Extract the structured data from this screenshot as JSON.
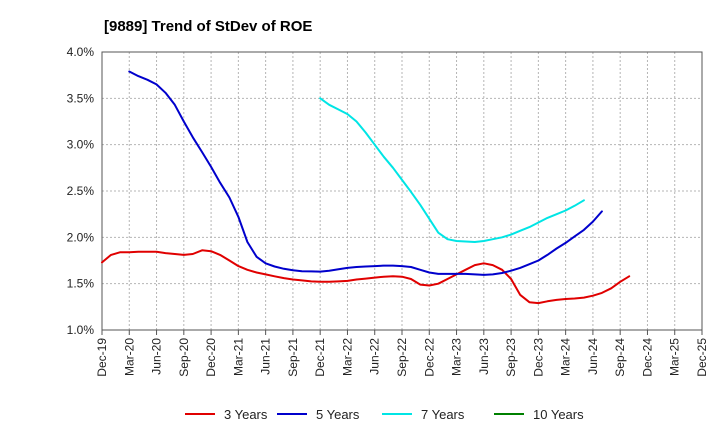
{
  "chart_data": {
    "type": "line",
    "title": "[9889]  Trend of StDev of ROE",
    "xlabel": "",
    "ylabel": "",
    "ylim": [
      1.0,
      4.0
    ],
    "y_ticks": [
      "1.0%",
      "1.5%",
      "2.0%",
      "2.5%",
      "3.0%",
      "3.5%",
      "4.0%"
    ],
    "y_tick_values": [
      1.0,
      1.5,
      2.0,
      2.5,
      3.0,
      3.5,
      4.0
    ],
    "categories": [
      "Dec-19",
      "Mar-20",
      "Jun-20",
      "Sep-20",
      "Dec-20",
      "Mar-21",
      "Jun-21",
      "Sep-21",
      "Dec-21",
      "Mar-22",
      "Jun-22",
      "Sep-22",
      "Dec-22",
      "Mar-23",
      "Jun-23",
      "Sep-23",
      "Dec-23",
      "Mar-24",
      "Jun-24",
      "Sep-24",
      "Dec-24",
      "Mar-25",
      "Dec-25"
    ],
    "grid": true,
    "legend_position": "bottom",
    "series": [
      {
        "name": "3 Years",
        "color": "#e00000",
        "points": [
          [
            0,
            1.73
          ],
          [
            0.33,
            1.81
          ],
          [
            0.67,
            1.84
          ],
          [
            1,
            1.84
          ],
          [
            1.33,
            1.845
          ],
          [
            1.67,
            1.845
          ],
          [
            2,
            1.845
          ],
          [
            2.33,
            1.83
          ],
          [
            2.67,
            1.82
          ],
          [
            3,
            1.81
          ],
          [
            3.33,
            1.82
          ],
          [
            3.67,
            1.86
          ],
          [
            4,
            1.85
          ],
          [
            4.33,
            1.81
          ],
          [
            4.67,
            1.75
          ],
          [
            5,
            1.69
          ],
          [
            5.33,
            1.65
          ],
          [
            5.67,
            1.62
          ],
          [
            6,
            1.6
          ],
          [
            6.33,
            1.58
          ],
          [
            6.67,
            1.56
          ],
          [
            7,
            1.545
          ],
          [
            7.33,
            1.535
          ],
          [
            7.67,
            1.525
          ],
          [
            8,
            1.52
          ],
          [
            8.33,
            1.52
          ],
          [
            8.67,
            1.525
          ],
          [
            9,
            1.53
          ],
          [
            9.33,
            1.545
          ],
          [
            9.67,
            1.555
          ],
          [
            10,
            1.565
          ],
          [
            10.33,
            1.575
          ],
          [
            10.67,
            1.58
          ],
          [
            11,
            1.575
          ],
          [
            11.33,
            1.55
          ],
          [
            11.67,
            1.49
          ],
          [
            12,
            1.48
          ],
          [
            12.33,
            1.5
          ],
          [
            12.67,
            1.55
          ],
          [
            13,
            1.6
          ],
          [
            13.33,
            1.65
          ],
          [
            13.67,
            1.7
          ],
          [
            14,
            1.72
          ],
          [
            14.33,
            1.7
          ],
          [
            14.67,
            1.65
          ],
          [
            15,
            1.55
          ],
          [
            15.33,
            1.38
          ],
          [
            15.67,
            1.3
          ],
          [
            16,
            1.29
          ],
          [
            16.33,
            1.31
          ],
          [
            16.67,
            1.325
          ],
          [
            17,
            1.335
          ],
          [
            17.33,
            1.34
          ],
          [
            17.67,
            1.35
          ],
          [
            18,
            1.37
          ],
          [
            18.33,
            1.4
          ],
          [
            18.67,
            1.45
          ],
          [
            19,
            1.52
          ],
          [
            19.33,
            1.58
          ]
        ]
      },
      {
        "name": "5 Years",
        "color": "#0000cc",
        "points": [
          [
            1,
            3.79
          ],
          [
            1.33,
            3.74
          ],
          [
            1.67,
            3.7
          ],
          [
            2,
            3.65
          ],
          [
            2.33,
            3.56
          ],
          [
            2.67,
            3.43
          ],
          [
            3,
            3.25
          ],
          [
            3.33,
            3.08
          ],
          [
            3.67,
            2.92
          ],
          [
            4,
            2.76
          ],
          [
            4.33,
            2.59
          ],
          [
            4.67,
            2.43
          ],
          [
            5,
            2.22
          ],
          [
            5.33,
            1.95
          ],
          [
            5.67,
            1.79
          ],
          [
            6,
            1.72
          ],
          [
            6.33,
            1.685
          ],
          [
            6.67,
            1.66
          ],
          [
            7,
            1.645
          ],
          [
            7.33,
            1.635
          ],
          [
            7.67,
            1.632
          ],
          [
            8,
            1.63
          ],
          [
            8.33,
            1.64
          ],
          [
            8.67,
            1.655
          ],
          [
            9,
            1.67
          ],
          [
            9.33,
            1.68
          ],
          [
            9.67,
            1.685
          ],
          [
            10,
            1.69
          ],
          [
            10.33,
            1.695
          ],
          [
            10.67,
            1.695
          ],
          [
            11,
            1.69
          ],
          [
            11.33,
            1.68
          ],
          [
            11.67,
            1.65
          ],
          [
            12,
            1.62
          ],
          [
            12.33,
            1.605
          ],
          [
            12.67,
            1.605
          ],
          [
            13,
            1.605
          ],
          [
            13.33,
            1.605
          ],
          [
            13.67,
            1.6
          ],
          [
            14,
            1.595
          ],
          [
            14.33,
            1.6
          ],
          [
            14.67,
            1.615
          ],
          [
            15,
            1.64
          ],
          [
            15.33,
            1.67
          ],
          [
            15.67,
            1.71
          ],
          [
            16,
            1.75
          ],
          [
            16.33,
            1.81
          ],
          [
            16.67,
            1.88
          ],
          [
            17,
            1.94
          ],
          [
            17.33,
            2.01
          ],
          [
            17.67,
            2.08
          ],
          [
            18,
            2.17
          ],
          [
            18.33,
            2.28
          ]
        ]
      },
      {
        "name": "7 Years",
        "color": "#00e5e5",
        "points": [
          [
            8,
            3.5
          ],
          [
            8.33,
            3.43
          ],
          [
            8.67,
            3.38
          ],
          [
            9,
            3.33
          ],
          [
            9.33,
            3.25
          ],
          [
            9.67,
            3.13
          ],
          [
            10,
            3.0
          ],
          [
            10.33,
            2.87
          ],
          [
            10.67,
            2.75
          ],
          [
            11,
            2.62
          ],
          [
            11.33,
            2.49
          ],
          [
            11.67,
            2.35
          ],
          [
            12,
            2.2
          ],
          [
            12.33,
            2.05
          ],
          [
            12.67,
            1.98
          ],
          [
            13,
            1.96
          ],
          [
            13.33,
            1.955
          ],
          [
            13.67,
            1.95
          ],
          [
            14,
            1.96
          ],
          [
            14.33,
            1.98
          ],
          [
            14.67,
            2.0
          ],
          [
            15,
            2.03
          ],
          [
            15.33,
            2.07
          ],
          [
            15.67,
            2.11
          ],
          [
            16,
            2.16
          ],
          [
            16.33,
            2.21
          ],
          [
            16.67,
            2.25
          ],
          [
            17,
            2.29
          ],
          [
            17.33,
            2.34
          ],
          [
            17.67,
            2.4
          ]
        ]
      },
      {
        "name": "10 Years",
        "color": "#008000",
        "points": []
      }
    ]
  }
}
